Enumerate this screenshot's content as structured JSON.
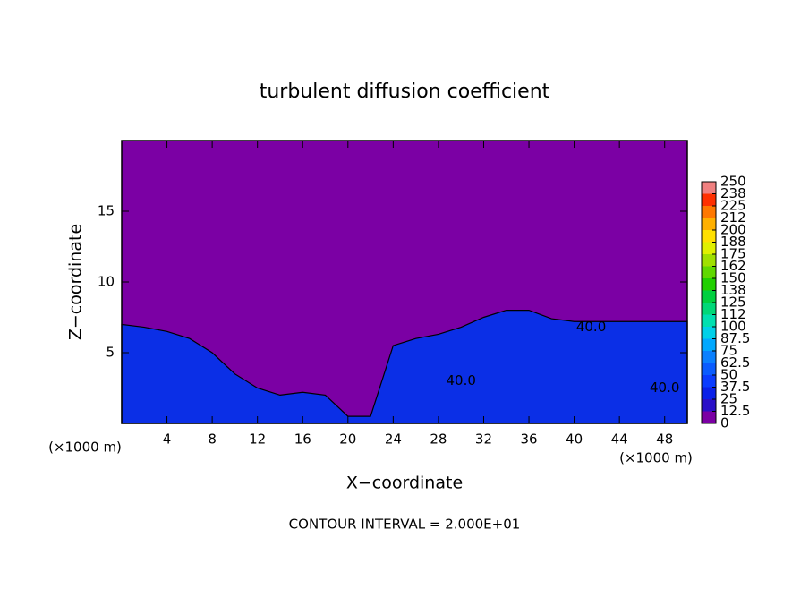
{
  "chart_data": {
    "type": "contour",
    "title": "turbulent diffusion coefficient",
    "x_label": "X−coordinate",
    "y_label": "Z−coordinate",
    "x_unit": "(×1000 m)",
    "y_unit": "(×1000 m)",
    "footnote": "CONTOUR INTERVAL = 2.000E+01",
    "xlim": [
      0,
      50
    ],
    "ylim": [
      0,
      20
    ],
    "xticks": [
      4,
      8,
      12,
      16,
      20,
      24,
      28,
      32,
      36,
      40,
      44,
      48
    ],
    "yticks": [
      5,
      10,
      15
    ],
    "background_color": "#7b00a4",
    "layer": {
      "color": "#0b2fe6",
      "x": [
        0,
        2,
        4,
        6,
        8,
        10,
        12,
        14,
        16,
        18,
        20,
        22,
        24,
        26,
        28,
        30,
        32,
        34,
        36,
        38,
        40,
        42,
        44,
        46,
        48,
        50
      ],
      "values": [
        7,
        6.8,
        6.5,
        6,
        5,
        3.5,
        2.5,
        2,
        2.2,
        2,
        0.5,
        0.5,
        5.5,
        6,
        6.3,
        6.8,
        7.5,
        8,
        8,
        7.4,
        7.2,
        7.2,
        7.2,
        7.2,
        7.2,
        7.2
      ]
    },
    "contour_labels": [
      {
        "x": 41.5,
        "y": 6.8,
        "label": "40.0"
      },
      {
        "x": 30,
        "y": 3.0,
        "label": "40.0"
      },
      {
        "x": 48,
        "y": 2.5,
        "label": "40.0"
      }
    ],
    "colorbar": {
      "ticks": [
        0,
        12.5,
        25,
        37.5,
        50,
        62.5,
        75,
        87.5,
        100,
        {
          "value": 112.5,
          "label": "112"
        },
        125,
        {
          "value": 137.5,
          "label": "138"
        },
        150,
        {
          "value": 162.5,
          "label": "162"
        },
        175,
        {
          "value": 187.5,
          "label": "188"
        },
        200,
        {
          "value": 212.5,
          "label": "212"
        },
        225,
        {
          "value": 237.5,
          "label": "238"
        },
        250
      ],
      "colors": [
        "#7b00a4",
        "#2a10c8",
        "#0a20e8",
        "#0a3cff",
        "#0a5cff",
        "#0a80ff",
        "#00a8ff",
        "#00d0e8",
        "#00e0b0",
        "#00d878",
        "#00d040",
        "#20d000",
        "#60d800",
        "#a0e000",
        "#e0f000",
        "#ffe000",
        "#ffb000",
        "#ff7800",
        "#ff3000",
        "#f08080"
      ]
    }
  }
}
